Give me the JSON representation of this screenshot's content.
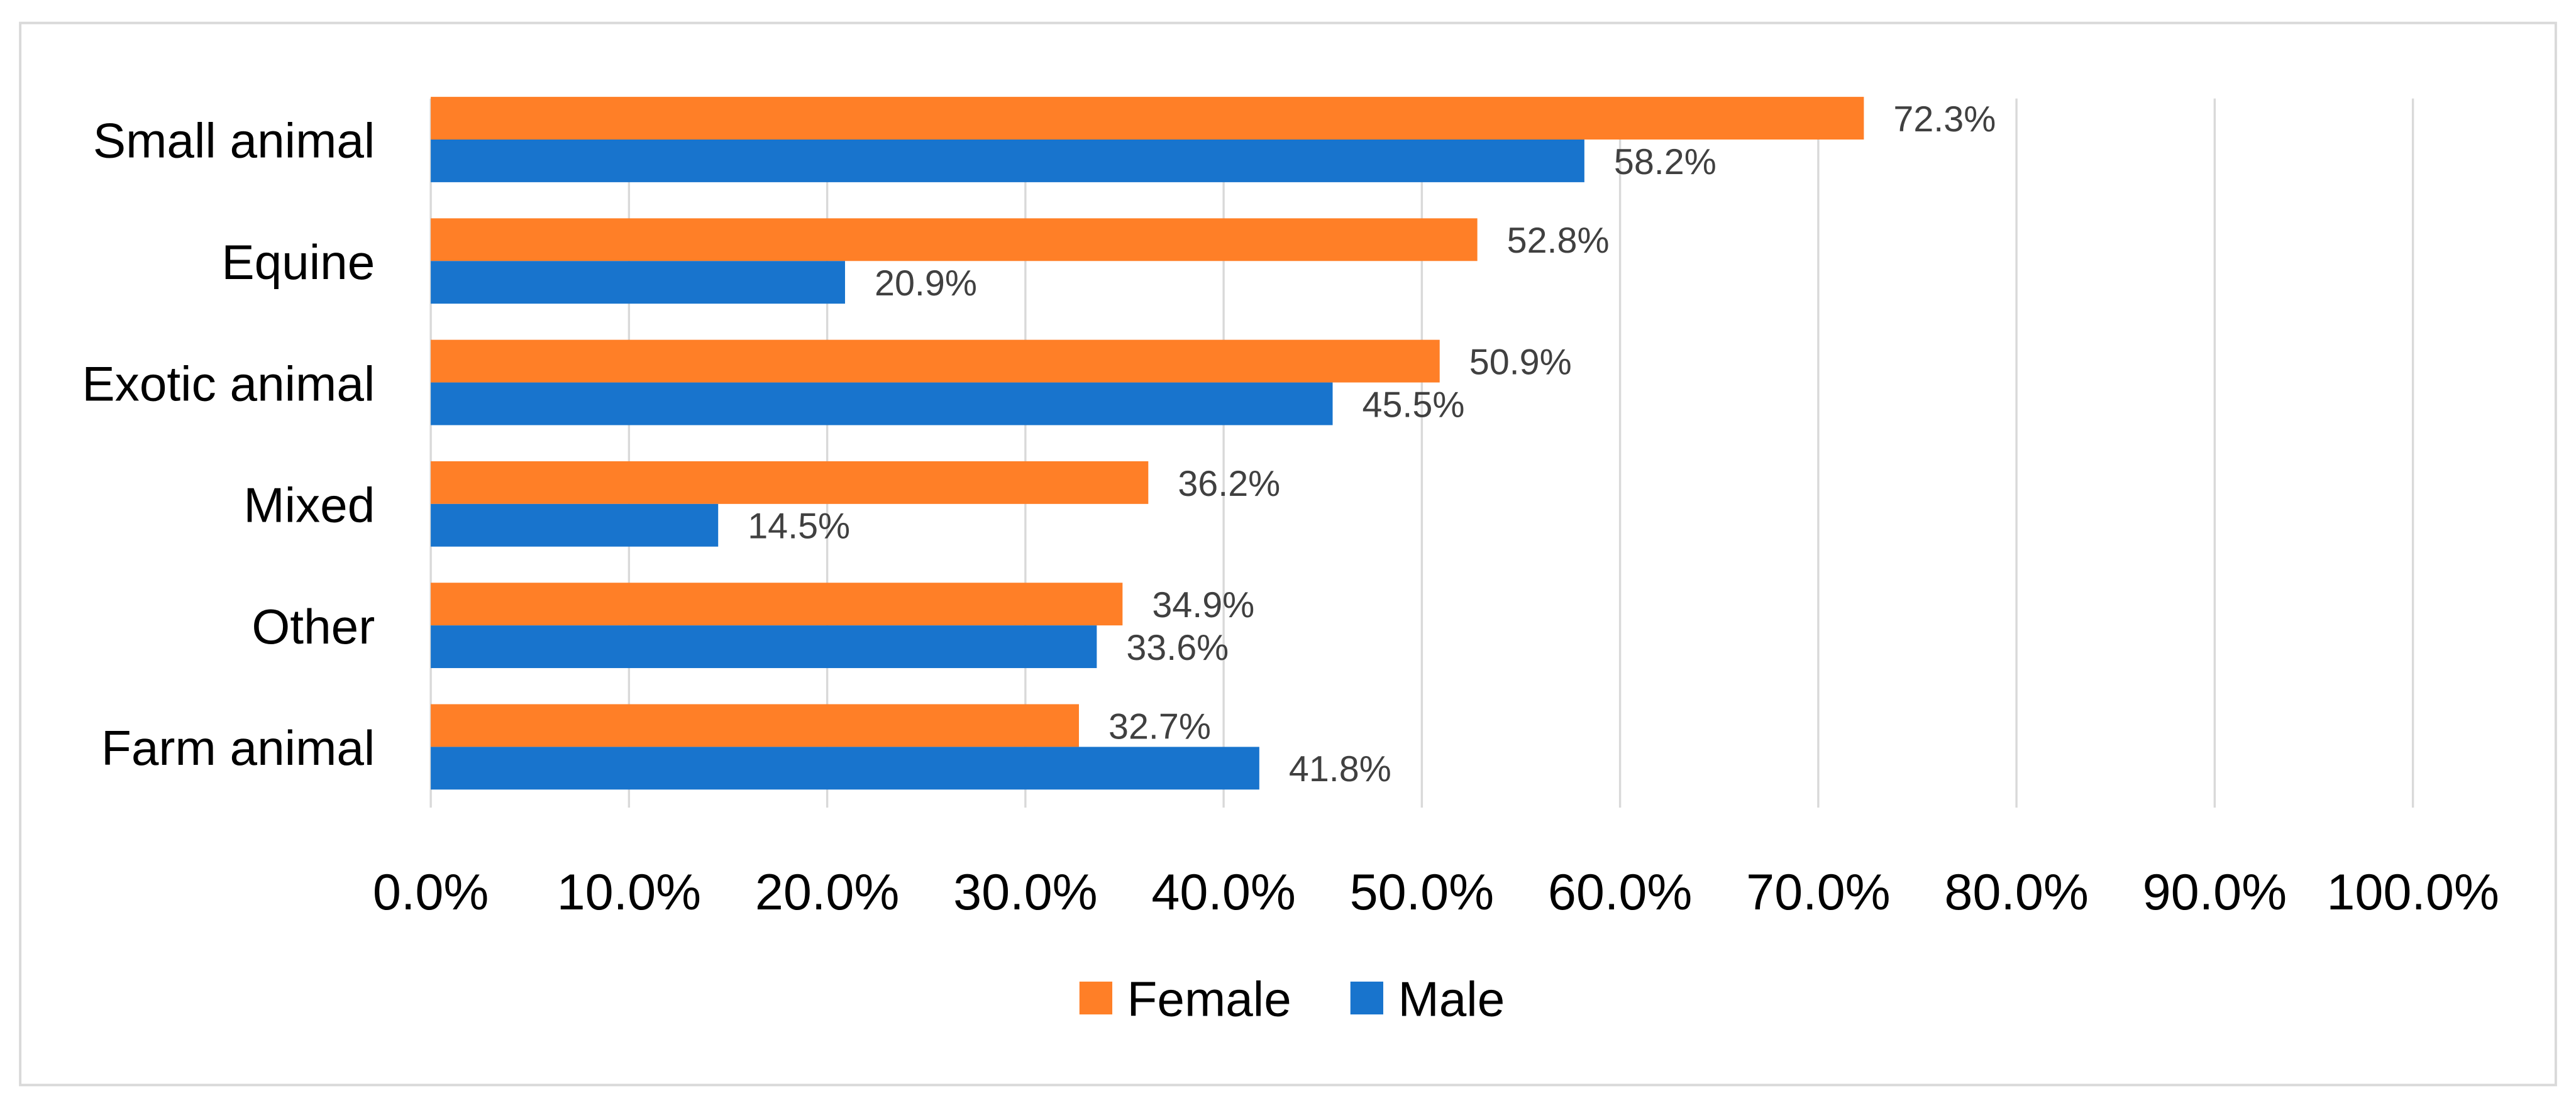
{
  "chart_data": {
    "type": "bar",
    "orientation": "horizontal",
    "title": "",
    "xlabel": "",
    "ylabel": "",
    "categories": [
      "Small animal",
      "Equine",
      "Exotic animal",
      "Mixed",
      "Other",
      "Farm animal"
    ],
    "series": [
      {
        "name": "Female",
        "color": "#FF7F27",
        "values": [
          72.3,
          52.8,
          50.9,
          36.2,
          34.9,
          32.7
        ],
        "labels": [
          "72.3%",
          "52.8%",
          "50.9%",
          "36.2%",
          "34.9%",
          "32.7%"
        ]
      },
      {
        "name": "Male",
        "color": "#1874CD",
        "values": [
          58.2,
          20.9,
          45.5,
          14.5,
          33.6,
          41.8
        ],
        "labels": [
          "58.2%",
          "20.9%",
          "45.5%",
          "14.5%",
          "33.6%",
          "41.8%"
        ]
      }
    ],
    "xlim": [
      0,
      100
    ],
    "xticks": [
      0,
      10,
      20,
      30,
      40,
      50,
      60,
      70,
      80,
      90,
      100
    ],
    "xtick_labels": [
      "0.0%",
      "10.0%",
      "20.0%",
      "30.0%",
      "40.0%",
      "50.0%",
      "60.0%",
      "70.0%",
      "80.0%",
      "90.0%",
      "100.0%"
    ],
    "grid": true,
    "legend_position": "bottom"
  }
}
